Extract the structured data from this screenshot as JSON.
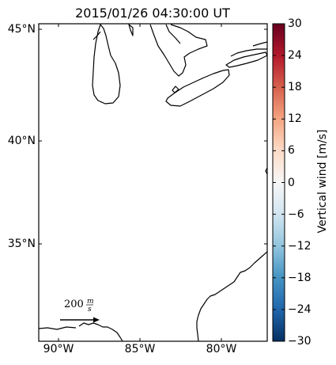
{
  "title": "2015/01/26 04:30:00 UT",
  "lat_labels": [
    "45°N",
    "40°N",
    "35°N"
  ],
  "lon_labels": [
    "90°W",
    "85°W",
    "80°W"
  ],
  "scale_arrow": {
    "label_value": "200",
    "label_unit": "m/s"
  },
  "colorbar": {
    "label": "Vertical wind [m/s]",
    "ticks": [
      "30",
      "24",
      "18",
      "12",
      "6",
      "0",
      "−6",
      "−12",
      "−18",
      "−24",
      "−30"
    ],
    "range": [
      -30,
      30
    ],
    "colormap": "RdBu_r",
    "colors": [
      "#67001f",
      "#b2182b",
      "#d6604d",
      "#f4a582",
      "#fddbc7",
      "#f7f7f7",
      "#d1e5f0",
      "#92c5de",
      "#4393c3",
      "#2166ac",
      "#053061"
    ]
  },
  "map": {
    "projection": "equirectangular",
    "lon_range": [
      -91.2,
      -77.2
    ],
    "lat_range": [
      30.4,
      45.2
    ],
    "features": [
      "Lake Michigan",
      "Lake Erie",
      "Lake Huron",
      "Lake Ontario",
      "Atlantic coastline",
      "Gulf of Mexico coastline"
    ]
  }
}
